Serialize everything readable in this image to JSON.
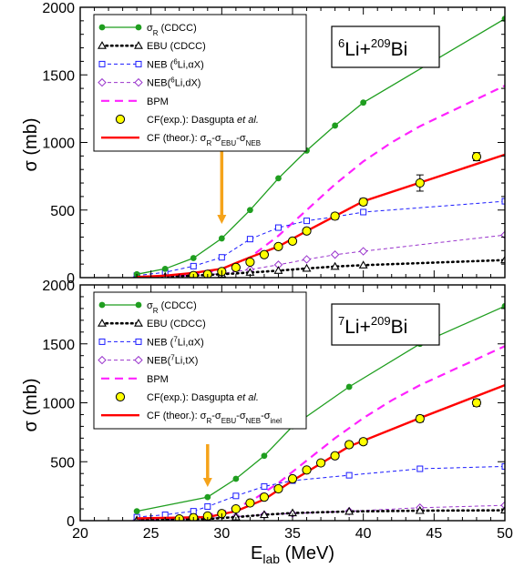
{
  "chart_data": {
    "type": "line",
    "xlabel": "E_lab (MeV)",
    "ylabel": "σ (mb)",
    "xlim": [
      20,
      50
    ],
    "ylim": [
      0,
      2000
    ],
    "xticks": [
      20,
      25,
      30,
      35,
      40,
      45,
      50
    ],
    "yticks": [
      0,
      500,
      1000,
      1500,
      2000
    ],
    "colors": {
      "sigmaR": "#1f9e1f",
      "ebu": "#000000",
      "neb": "#1a1aff",
      "nebAlpha": "#9933cc",
      "bpm": "#ff22ff",
      "cfExpFill": "#ffff00",
      "cfTheor": "#ff0000",
      "arrow": "#f5a31a"
    },
    "panels": [
      {
        "reaction": {
          "proj": "Li",
          "projMass": "6",
          "target": "Bi",
          "targetMass": "209",
          "sep": "+"
        },
        "legend": [
          {
            "key": "sigmaR",
            "label": "σ_R (CDCC)"
          },
          {
            "key": "ebu",
            "label": "EBU (CDCC)"
          },
          {
            "key": "neb",
            "label": "NEB (^6Li,αX)"
          },
          {
            "key": "nebAlpha",
            "label": "NEB(^6Li,dX)"
          },
          {
            "key": "bpm",
            "label": "BPM"
          },
          {
            "key": "cfExp",
            "label": "CF(exp.): Dasgupta et al."
          },
          {
            "key": "cfTheor",
            "label": "CF (theor.): σ_R-σ_EBU-σ_NEB"
          }
        ],
        "arrow_x": 30,
        "series": [
          {
            "key": "sigmaR",
            "x": [
              24,
              26,
              28,
              30,
              32,
              34,
              36,
              38,
              40,
              50
            ],
            "y": [
              25,
              65,
              145,
              290,
              500,
              735,
              940,
              1125,
              1295,
              1915
            ]
          },
          {
            "key": "ebu",
            "x": [
              24,
              26,
              28,
              30,
              32,
              34,
              36,
              38,
              40,
              50
            ],
            "y": [
              3,
              8,
              15,
              25,
              38,
              52,
              68,
              82,
              92,
              130
            ]
          },
          {
            "key": "neb",
            "x": [
              24,
              26,
              28,
              30,
              32,
              34,
              36,
              38,
              40,
              50
            ],
            "y": [
              15,
              40,
              85,
              150,
              285,
              370,
              420,
              450,
              485,
              565
            ]
          },
          {
            "key": "nebAlpha",
            "x": [
              24,
              26,
              28,
              30,
              32,
              34,
              36,
              38,
              40,
              50
            ],
            "y": [
              3,
              8,
              15,
              30,
              60,
              95,
              135,
              170,
              195,
              315
            ]
          },
          {
            "key": "bpm",
            "x": [
              24,
              26,
              28,
              30,
              32,
              34,
              36,
              38,
              40,
              42,
              44,
              46,
              48,
              50
            ],
            "y": [
              2,
              8,
              22,
              60,
              150,
              310,
              500,
              690,
              860,
              1000,
              1120,
              1220,
              1320,
              1420
            ]
          },
          {
            "key": "cfTheor",
            "x": [
              24,
              26,
              28,
              30,
              32,
              34,
              36,
              38,
              40,
              50
            ],
            "y": [
              5,
              15,
              35,
              65,
              150,
              230,
              345,
              455,
              565,
              910
            ]
          },
          {
            "key": "cfExp",
            "x": [
              28,
              29,
              30,
              31,
              32,
              33,
              34,
              35,
              36,
              38,
              40,
              44,
              48
            ],
            "y": [
              15,
              25,
              45,
              75,
              115,
              170,
              230,
              270,
              345,
              455,
              560,
              700,
              895
            ],
            "err": [
              3,
              4,
              6,
              8,
              10,
              12,
              14,
              16,
              18,
              22,
              25,
              60,
              30
            ]
          }
        ]
      },
      {
        "reaction": {
          "proj": "Li",
          "projMass": "7",
          "target": "Bi",
          "targetMass": "209",
          "sep": "+"
        },
        "legend": [
          {
            "key": "sigmaR",
            "label": "σ_R (CDCC)"
          },
          {
            "key": "ebu",
            "label": "EBU (CDCC)"
          },
          {
            "key": "neb",
            "label": "NEB (^7Li,αX)"
          },
          {
            "key": "nebAlpha",
            "label": "NEB(^7Li,tX)"
          },
          {
            "key": "bpm",
            "label": "BPM"
          },
          {
            "key": "cfExp",
            "label": "CF(exp.): Dasgupta et al."
          },
          {
            "key": "cfTheor",
            "label": "CF (theor.): σ_R-σ_EBU-σ_NEB-σ_inel"
          }
        ],
        "arrow_x": 29,
        "series": [
          {
            "key": "sigmaR",
            "x": [
              24,
              29,
              31,
              33,
              35,
              39,
              44,
              50
            ],
            "y": [
              80,
              200,
              355,
              550,
              800,
              1135,
              1500,
              1820
            ]
          },
          {
            "key": "ebu",
            "x": [
              24,
              29,
              31,
              33,
              35,
              39,
              44,
              50
            ],
            "y": [
              5,
              15,
              30,
              50,
              65,
              78,
              85,
              88
            ]
          },
          {
            "key": "neb",
            "x": [
              24,
              26,
              28,
              29,
              31,
              33,
              35,
              39,
              44,
              50
            ],
            "y": [
              30,
              50,
              80,
              120,
              210,
              290,
              340,
              385,
              440,
              460
            ]
          },
          {
            "key": "nebAlpha",
            "x": [
              24,
              26,
              28,
              29,
              31,
              33,
              35,
              39,
              44,
              50
            ],
            "y": [
              5,
              8,
              12,
              20,
              35,
              50,
              60,
              80,
              110,
              130
            ]
          },
          {
            "key": "bpm",
            "x": [
              24,
              26,
              28,
              30,
              32,
              34,
              36,
              38,
              40,
              42,
              44,
              46,
              48,
              50
            ],
            "y": [
              2,
              8,
              25,
              70,
              160,
              320,
              510,
              700,
              870,
              1020,
              1150,
              1260,
              1370,
              1480
            ]
          },
          {
            "key": "cfTheor",
            "x": [
              24,
              29,
              31,
              33,
              35,
              39,
              44,
              50
            ],
            "y": [
              20,
              30,
              80,
              180,
              340,
              630,
              870,
              1150
            ]
          },
          {
            "key": "cfExp",
            "x": [
              27,
              28,
              29,
              30,
              31,
              32,
              33,
              34,
              35,
              36,
              37,
              38,
              39,
              40,
              44,
              48
            ],
            "y": [
              15,
              25,
              40,
              60,
              100,
              150,
              200,
              270,
              355,
              430,
              490,
              550,
              645,
              670,
              865,
              1000
            ],
            "err": [
              3,
              4,
              5,
              7,
              9,
              11,
              13,
              15,
              17,
              19,
              20,
              22,
              24,
              25,
              28,
              30
            ]
          }
        ]
      }
    ]
  }
}
